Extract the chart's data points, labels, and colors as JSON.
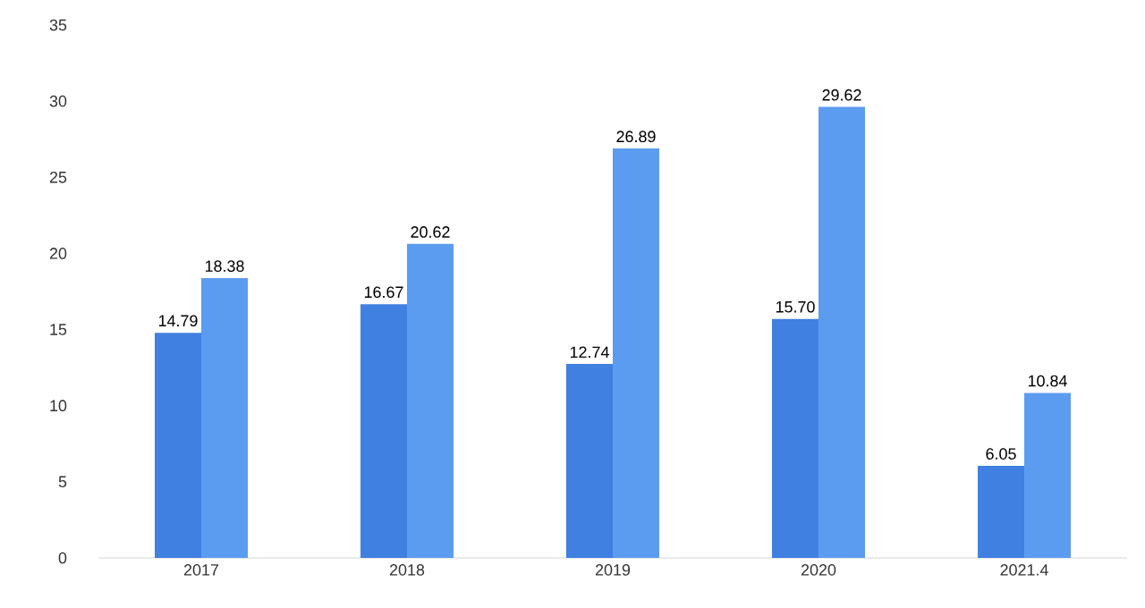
{
  "chart_data": {
    "type": "bar",
    "categories": [
      "2017",
      "2018",
      "2019",
      "2020",
      "2021.4"
    ],
    "series": [
      {
        "color": "#3f80e0",
        "values": [
          14.79,
          16.67,
          12.74,
          15.7,
          6.05
        ],
        "value_labels": [
          "14.79",
          "16.67",
          "12.74",
          "15.70",
          "6.05"
        ]
      },
      {
        "color": "#5c9cf0",
        "values": [
          18.38,
          20.62,
          26.89,
          29.62,
          10.84
        ],
        "value_labels": [
          "18.38",
          "20.62",
          "26.89",
          "29.62",
          "10.84"
        ]
      }
    ],
    "ylim": [
      0,
      35
    ],
    "yticks": [
      0,
      5,
      10,
      15,
      20,
      25,
      30,
      35
    ]
  }
}
